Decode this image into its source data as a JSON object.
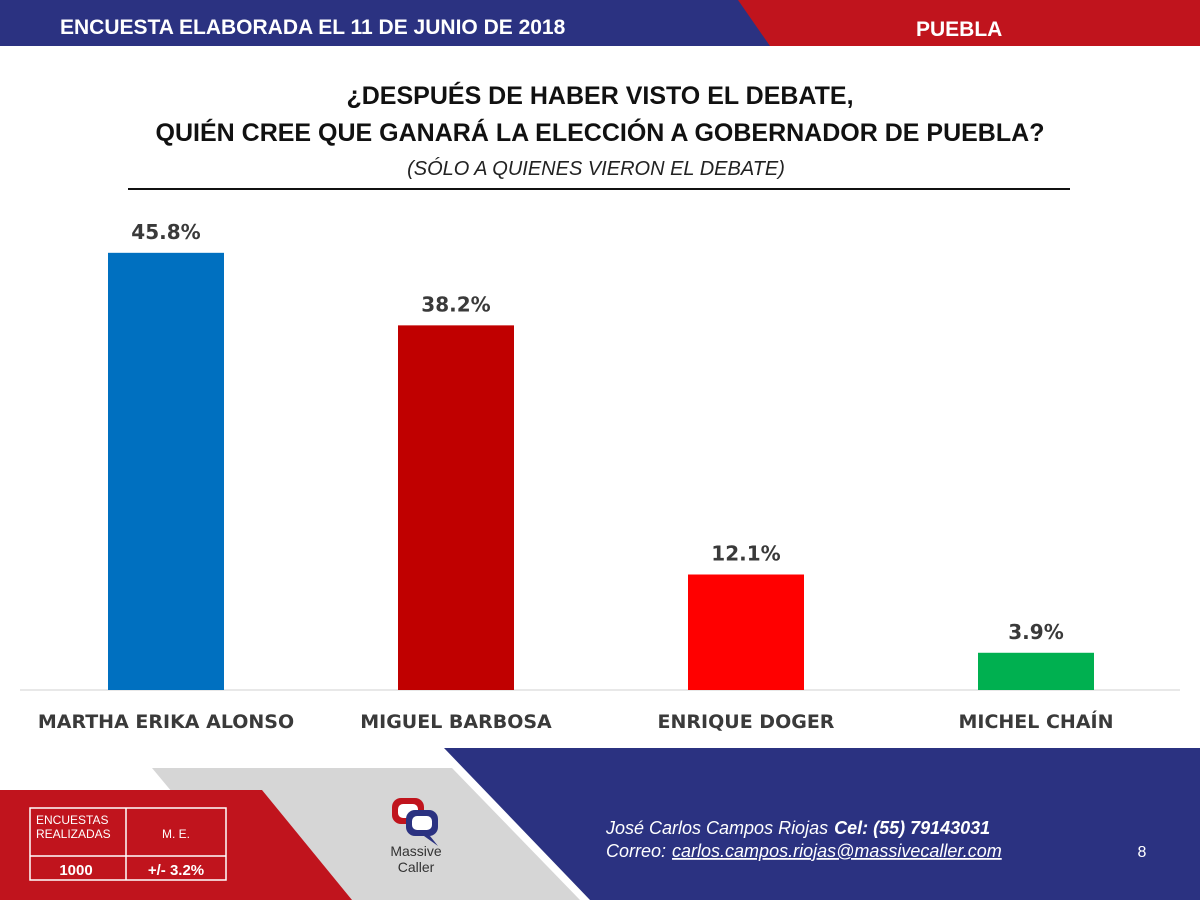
{
  "header": {
    "left_text": "ENCUESTA ELABORADA EL  11 DE JUNIO DE 2018",
    "right_text": "PUEBLA"
  },
  "colors": {
    "navy": "#2b3281",
    "red": "#c0141d",
    "bar_blue": "#0070c0",
    "bar_darkred": "#c00000",
    "bar_red": "#ff0000",
    "bar_green": "#00b050"
  },
  "chart_data": {
    "type": "bar",
    "title_line1": "¿DESPUÉS DE HABER VISTO EL DEBATE,",
    "title_line2": "QUIÉN CREE QUE GANARÁ LA ELECCIÓN A GOBERNADOR DE PUEBLA?",
    "subtitle": "(SÓLO A QUIENES VIERON EL DEBATE)",
    "categories": [
      "MARTHA ERIKA ALONSO",
      "MIGUEL BARBOSA",
      "ENRIQUE DOGER",
      "MICHEL CHAÍN"
    ],
    "values": [
      45.8,
      38.2,
      12.1,
      3.9
    ],
    "value_labels": [
      "45.8%",
      "38.2%",
      "12.1%",
      "3.9%"
    ],
    "bar_colors": [
      "#0070c0",
      "#c00000",
      "#ff0000",
      "#00b050"
    ],
    "ylim": [
      0,
      55
    ],
    "grid": false,
    "legend": "none"
  },
  "stats": {
    "surveys_label_line1": "ENCUESTAS",
    "surveys_label_line2": "REALIZADAS",
    "surveys_value": "1000",
    "me_label": "M. E.",
    "me_value": "+/- 3.2%"
  },
  "logo": {
    "icon": "speech-bubbles-icon",
    "line1": "Massive",
    "line2": "Caller"
  },
  "contact": {
    "name": "José Carlos Campos Riojas",
    "phone": "Cel: (55) 79143031",
    "email_label": "Correo:",
    "email": "carlos.campos.riojas@massivecaller.com"
  },
  "page_number": "8"
}
